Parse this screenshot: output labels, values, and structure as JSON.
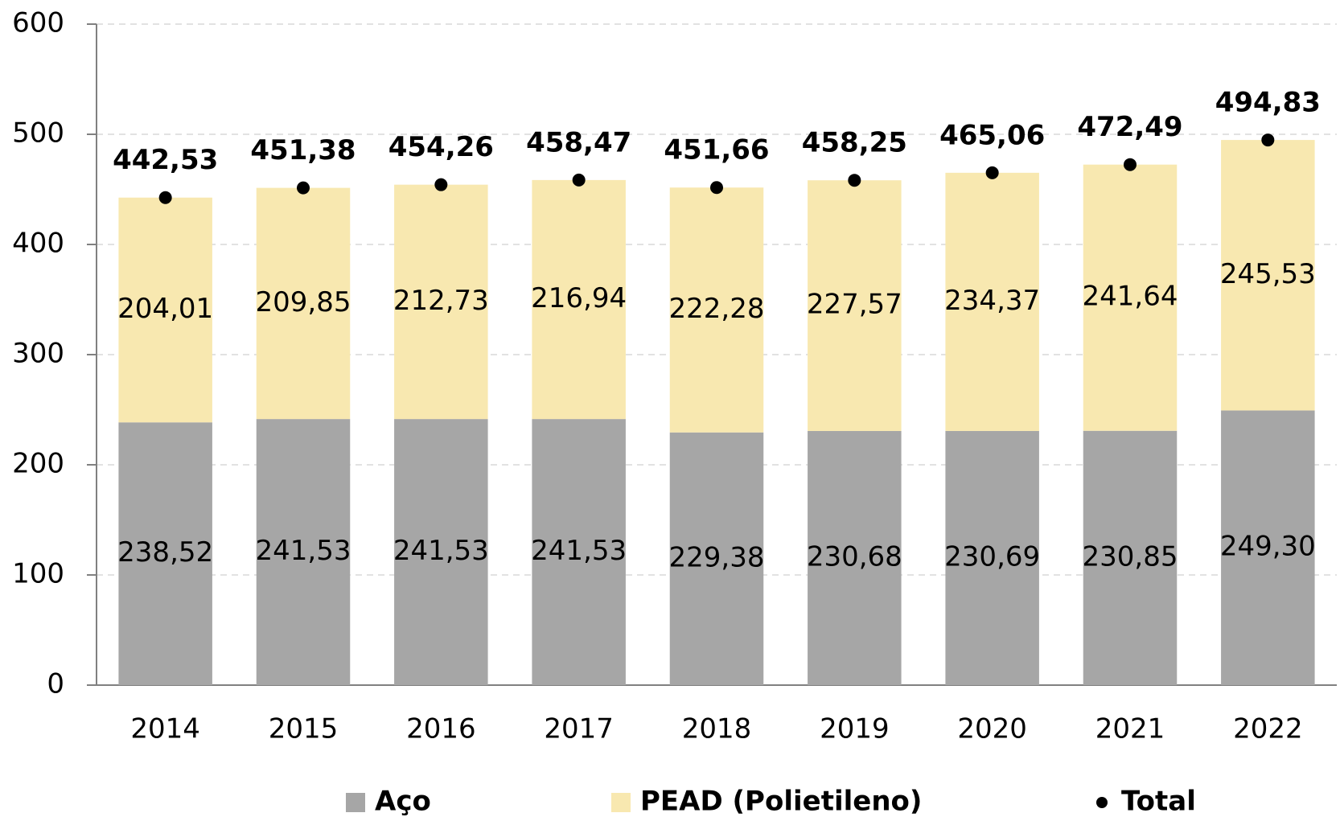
{
  "chart_data": {
    "type": "bar",
    "stacked": true,
    "categories": [
      "2014",
      "2015",
      "2016",
      "2017",
      "2018",
      "2019",
      "2020",
      "2021",
      "2022"
    ],
    "series": [
      {
        "name": "Aço",
        "type": "bar",
        "color": "#a6a6a6",
        "values": [
          238.52,
          241.53,
          241.53,
          241.53,
          229.38,
          230.68,
          230.69,
          230.85,
          249.3
        ],
        "value_labels": [
          "238,52",
          "241,53",
          "241,53",
          "241,53",
          "229,38",
          "230,68",
          "230,69",
          "230,85",
          "249,30"
        ]
      },
      {
        "name": "PEAD (Polietileno)",
        "type": "bar",
        "color": "#f8e8b0",
        "values": [
          204.01,
          209.85,
          212.73,
          216.94,
          222.28,
          227.57,
          234.37,
          241.64,
          245.53
        ],
        "value_labels": [
          "204,01",
          "209,85",
          "212,73",
          "216,94",
          "222,28",
          "227,57",
          "234,37",
          "241,64",
          "245,53"
        ]
      },
      {
        "name": "Total",
        "type": "dot",
        "color": "#000000",
        "values": [
          442.53,
          451.38,
          454.26,
          458.47,
          451.66,
          458.25,
          465.06,
          472.49,
          494.83
        ],
        "value_labels": [
          "442,53",
          "451,38",
          "454,26",
          "458,47",
          "451,66",
          "458,25",
          "465,06",
          "472,49",
          "494,83"
        ]
      }
    ],
    "ylim": [
      0,
      600
    ],
    "yticks": [
      0,
      100,
      200,
      300,
      400,
      500,
      600
    ],
    "grid": true,
    "legend": "bottom"
  }
}
